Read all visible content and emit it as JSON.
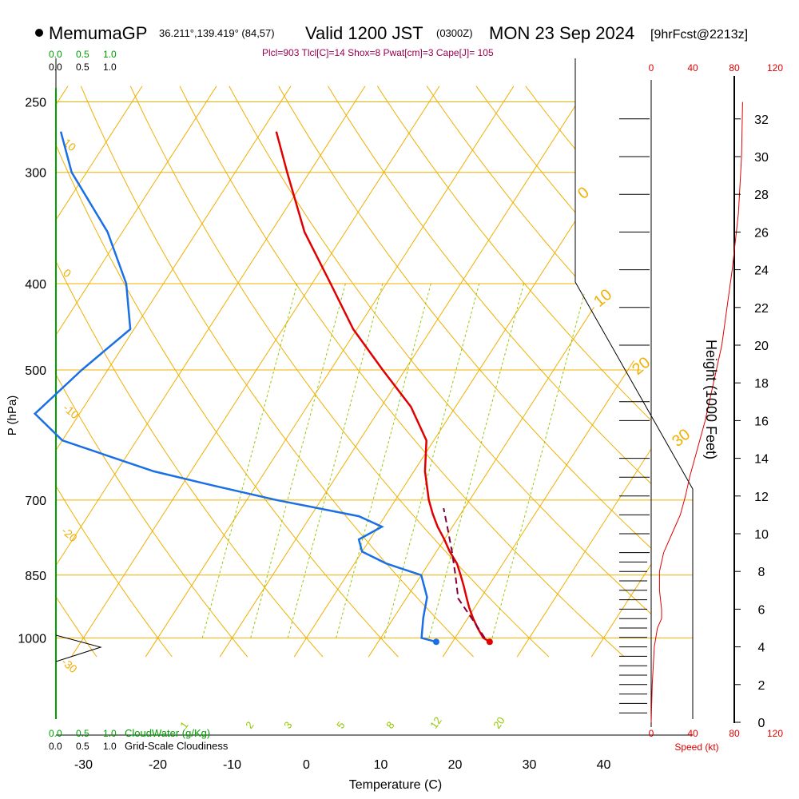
{
  "header": {
    "model": "MemumaGP",
    "coords": "36.211°,139.419° (84,57)",
    "valid_label": "Valid 1200 JST",
    "utc": "(0300Z)",
    "date": "MON 23 Sep 2024",
    "forecast": "[9hrFcst@2213z]"
  },
  "indices": "Plcl=903 Tlcl[C]=14 Shox=8 Pwat[cm]=3 Cape[J]= 105",
  "cloud_scale": {
    "ticks": [
      "0.0",
      "0.5",
      "1.0"
    ],
    "cloudwater_label": "CloudWater (g/Kg)",
    "cloudiness_label": "Grid-Scale Cloudiness"
  },
  "speed_axis": {
    "ticks": [
      "0",
      "40",
      "80",
      "120"
    ],
    "label": "Speed (kt)"
  },
  "colors": {
    "temperature": "#e00000",
    "dewpoint": "#1a6fe6",
    "parcel": "#800040",
    "isobar": "#f0b000",
    "dry_adiabat": "#f0b000",
    "moist_adiabat": "#90c800",
    "mixing_ratio": "#90c800",
    "cloudwater": "#00a000",
    "speed": "#e00000",
    "indices_text": "#9b0050"
  },
  "chart_data": {
    "type": "skew-t",
    "ylabel": "P (hPa)",
    "xlabel": "Temperature (C)",
    "right_label": "Height (1000 Feet)",
    "pressure_ticks": [
      250,
      300,
      400,
      500,
      700,
      850,
      1000
    ],
    "temperature_ticks": [
      -30,
      -20,
      -10,
      0,
      10,
      20,
      30,
      40
    ],
    "height_ticks_kft": [
      0,
      2,
      4,
      6,
      8,
      10,
      12,
      14,
      16,
      18,
      20,
      22,
      24,
      26,
      28,
      30,
      32
    ],
    "xlim": [
      -33,
      49
    ],
    "dry_adiabat_labels": [
      "10",
      "0",
      "-10",
      "-20",
      "-30"
    ],
    "moist_adiabat_labels": [
      "0",
      "10",
      "20",
      "30"
    ],
    "mixing_ratio_labels": [
      "1",
      "2",
      "3",
      "5",
      "8",
      "12",
      "20"
    ],
    "temperature_profile": [
      {
        "p": 1010,
        "t": 25.0
      },
      {
        "p": 1000,
        "t": 23.8
      },
      {
        "p": 975,
        "t": 22.2
      },
      {
        "p": 950,
        "t": 20.7
      },
      {
        "p": 925,
        "t": 19.3
      },
      {
        "p": 900,
        "t": 18.0
      },
      {
        "p": 875,
        "t": 16.7
      },
      {
        "p": 850,
        "t": 15.3
      },
      {
        "p": 825,
        "t": 13.8
      },
      {
        "p": 800,
        "t": 11.8
      },
      {
        "p": 775,
        "t": 10.0
      },
      {
        "p": 750,
        "t": 8.0
      },
      {
        "p": 725,
        "t": 6.2
      },
      {
        "p": 700,
        "t": 4.5
      },
      {
        "p": 650,
        "t": 1.5
      },
      {
        "p": 600,
        "t": -1.0
      },
      {
        "p": 550,
        "t": -6.0
      },
      {
        "p": 500,
        "t": -13.0
      },
      {
        "p": 450,
        "t": -20.5
      },
      {
        "p": 400,
        "t": -27.5
      },
      {
        "p": 350,
        "t": -35.5
      },
      {
        "p": 300,
        "t": -43.0
      },
      {
        "p": 270,
        "t": -48.0
      }
    ],
    "dewpoint_profile": [
      {
        "p": 1010,
        "t": 17.8
      },
      {
        "p": 1000,
        "t": 15.5
      },
      {
        "p": 950,
        "t": 14.0
      },
      {
        "p": 900,
        "t": 12.7
      },
      {
        "p": 850,
        "t": 10.0
      },
      {
        "p": 825,
        "t": 4.3
      },
      {
        "p": 800,
        "t": 0.0
      },
      {
        "p": 775,
        "t": -1.5
      },
      {
        "p": 750,
        "t": 0.5
      },
      {
        "p": 730,
        "t": -3.5
      },
      {
        "p": 700,
        "t": -16.0
      },
      {
        "p": 675,
        "t": -25.5
      },
      {
        "p": 650,
        "t": -35.0
      },
      {
        "p": 600,
        "t": -50.0
      },
      {
        "p": 560,
        "t": -56.0
      },
      {
        "p": 500,
        "t": -53.5
      },
      {
        "p": 450,
        "t": -50.5
      },
      {
        "p": 400,
        "t": -55.0
      },
      {
        "p": 350,
        "t": -62.0
      },
      {
        "p": 300,
        "t": -72.0
      },
      {
        "p": 270,
        "t": -77.0
      }
    ],
    "parcel_profile": [
      {
        "p": 1000,
        "t": 24.0
      },
      {
        "p": 950,
        "t": 20.5
      },
      {
        "p": 903,
        "t": 17.0
      },
      {
        "p": 850,
        "t": 14.6
      },
      {
        "p": 800,
        "t": 12.1
      },
      {
        "p": 750,
        "t": 9.3
      },
      {
        "p": 715,
        "t": 7.2
      }
    ],
    "surface_temperature": 25.0,
    "surface_dewpoint": 17.8,
    "wind_profile_height_kft": [
      0.5,
      1,
      1.5,
      2,
      2.5,
      3,
      3.5,
      4,
      4.5,
      5,
      5.5,
      6,
      6.5,
      7,
      7.5,
      8,
      8.5,
      9,
      10,
      11,
      12,
      13,
      14,
      16,
      17,
      20,
      22,
      24,
      26,
      28,
      30,
      32
    ],
    "speed_profile": [
      {
        "h": 0.0,
        "v": 0
      },
      {
        "h": 2.0,
        "v": 1
      },
      {
        "h": 4.0,
        "v": 3
      },
      {
        "h": 5.0,
        "v": 6
      },
      {
        "h": 5.5,
        "v": 10
      },
      {
        "h": 6.0,
        "v": 10
      },
      {
        "h": 7.0,
        "v": 8
      },
      {
        "h": 8.0,
        "v": 8
      },
      {
        "h": 9.0,
        "v": 12
      },
      {
        "h": 10.0,
        "v": 20
      },
      {
        "h": 11.0,
        "v": 28
      },
      {
        "h": 12.0,
        "v": 33
      },
      {
        "h": 13.0,
        "v": 37
      },
      {
        "h": 16.0,
        "v": 52
      },
      {
        "h": 20.0,
        "v": 68
      },
      {
        "h": 24.0,
        "v": 78
      },
      {
        "h": 27.0,
        "v": 84
      },
      {
        "h": 30.0,
        "v": 87
      },
      {
        "h": 32.9,
        "v": 88
      }
    ]
  }
}
